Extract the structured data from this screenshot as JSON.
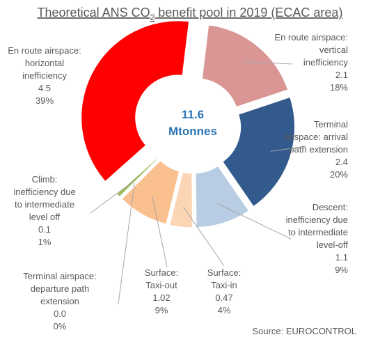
{
  "chart_data": {
    "type": "pie",
    "variant": "donut-exploded",
    "title": {
      "prefix": "Theoretical ANS CO",
      "subscript": "2",
      "suffix": " benefit pool in 2019 (ECAC area)"
    },
    "center": {
      "value": "11.6",
      "unit": "Mtonnes"
    },
    "total": 11.6,
    "slices": [
      {
        "id": "vertical",
        "lines": [
          "En route airspace:",
          "vertical",
          "inefficiency"
        ],
        "value_text": "2.1",
        "value": 2.1,
        "pct": "18%",
        "color": "#d99694"
      },
      {
        "id": "arrival",
        "lines": [
          "Terminal",
          "airspace: arrival",
          "path extension"
        ],
        "value_text": "2.4",
        "value": 2.4,
        "pct": "20%",
        "color": "#335a8c"
      },
      {
        "id": "descent",
        "lines": [
          "Descent:",
          "inefficiency due",
          "to intermediate",
          "level-off"
        ],
        "value_text": "1.1",
        "value": 1.1,
        "pct": "9%",
        "color": "#b8cce4"
      },
      {
        "id": "taxi-in",
        "lines": [
          "Surface:",
          "Taxi-in"
        ],
        "value_text": "0.47",
        "value": 0.47,
        "pct": "4%",
        "color": "#fcd5b5"
      },
      {
        "id": "taxi-out",
        "lines": [
          "Surface:",
          "Taxi-out"
        ],
        "value_text": "1.02",
        "value": 1.02,
        "pct": "9%",
        "color": "#fac090"
      },
      {
        "id": "departure",
        "lines": [
          "Terminal airspace:",
          "departure path",
          "extension"
        ],
        "value_text": "0.0",
        "value": 0.0,
        "pct": "0%",
        "color": "#c0504d"
      },
      {
        "id": "climb",
        "lines": [
          "Climb:",
          "inefficiency due",
          "to intermediate",
          "level off"
        ],
        "value_text": "0.1",
        "value": 0.1,
        "pct": "1%",
        "color": "#9bbb59"
      },
      {
        "id": "horizontal",
        "lines": [
          "En route airspace:",
          "horizontal",
          "inefficiency"
        ],
        "value_text": "4.5",
        "value": 4.5,
        "pct": "39%",
        "color": "#ff0000"
      }
    ],
    "source": "Source: EUROCONTROL"
  }
}
